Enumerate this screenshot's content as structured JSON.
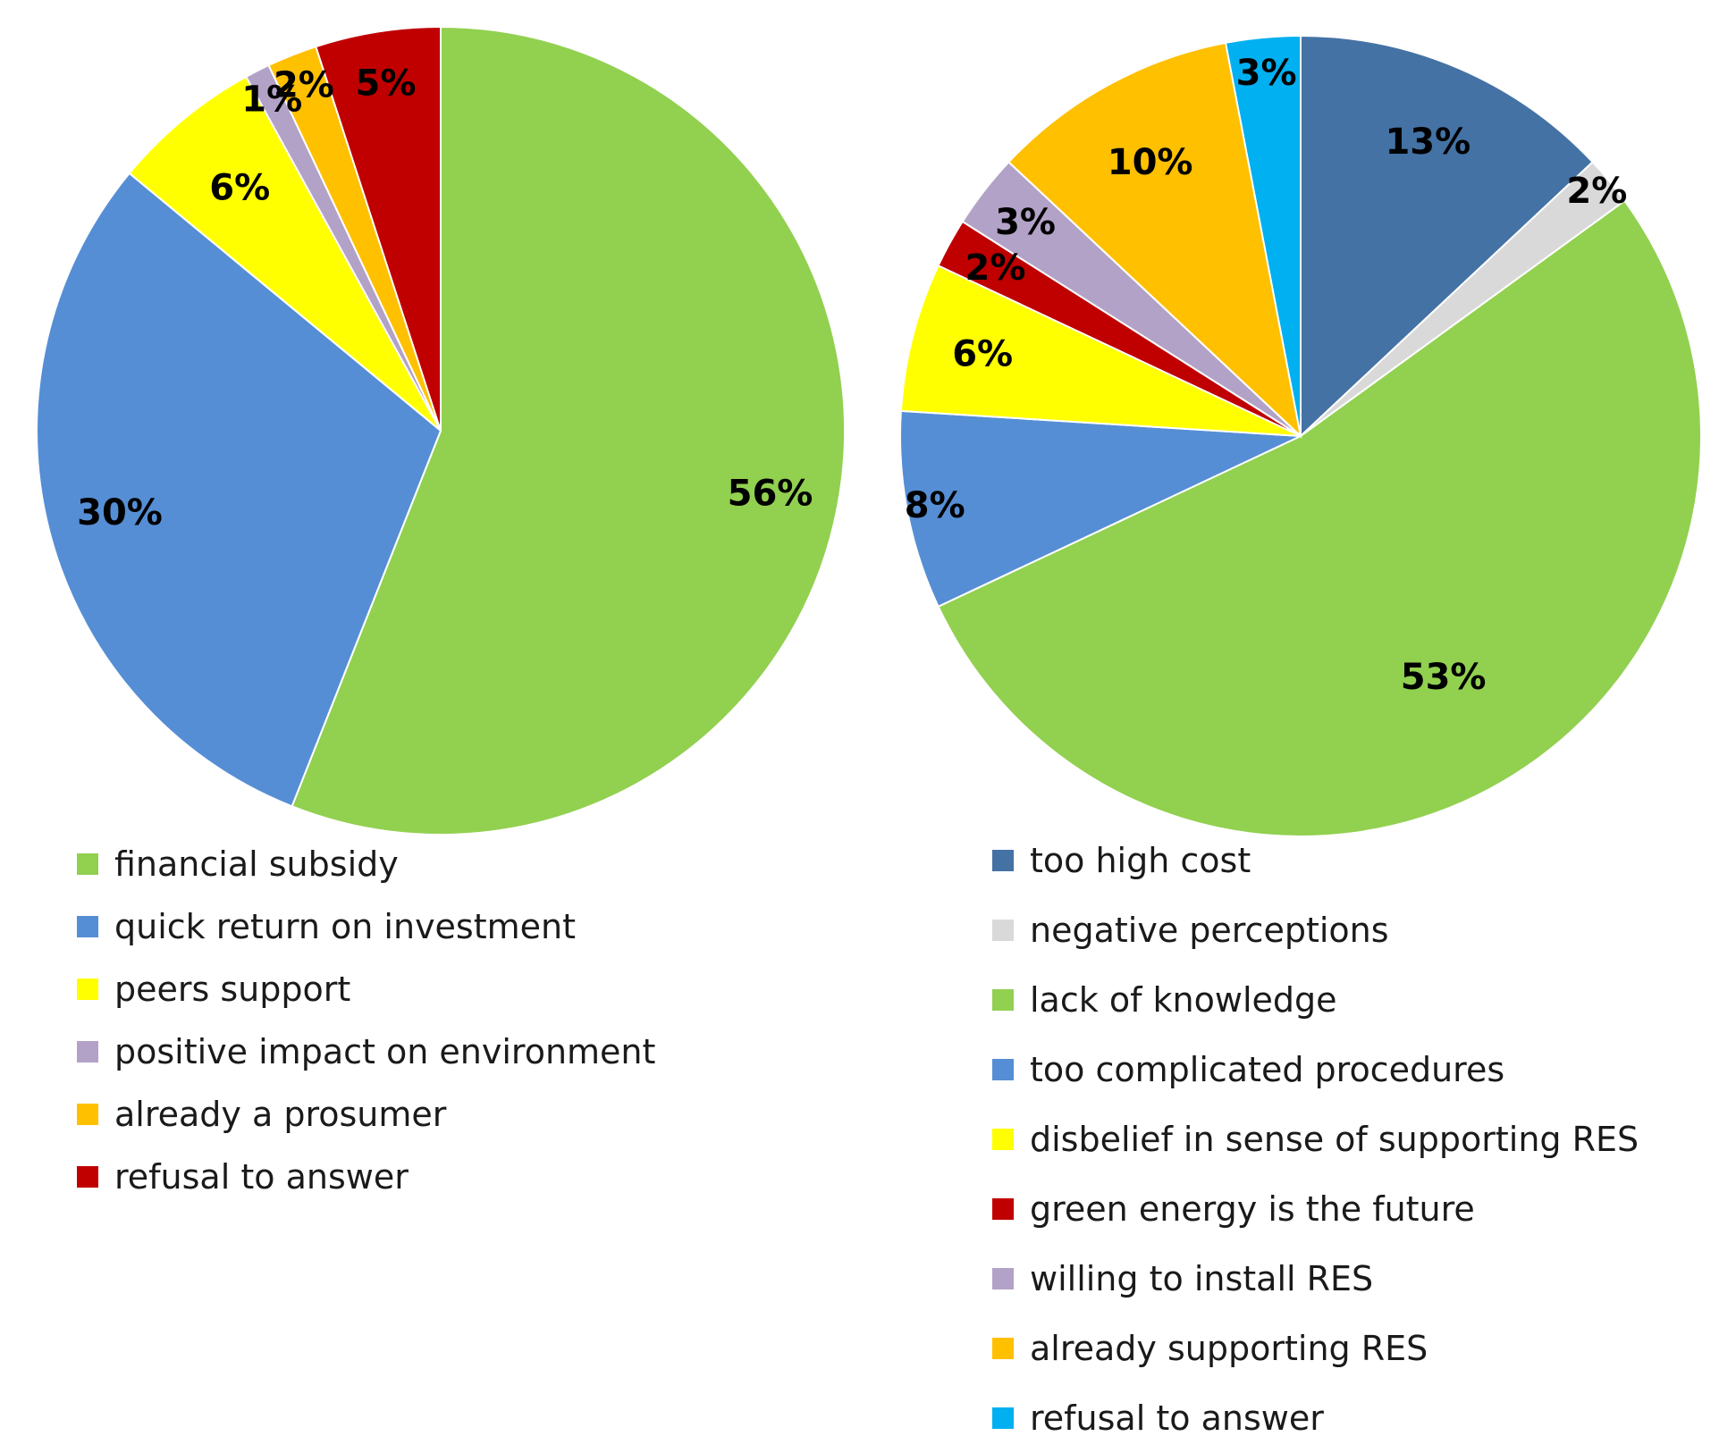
{
  "chart_data": [
    {
      "type": "pie",
      "title": "",
      "start": "top, clockwise",
      "series": [
        {
          "name": "financial subsidy",
          "value": 56,
          "label": "56%",
          "color": "#92D050"
        },
        {
          "name": "quick return on investment",
          "value": 30,
          "label": "30%",
          "color": "#558ED5"
        },
        {
          "name": "peers support",
          "value": 6,
          "label": "6%",
          "color": "#FFFF00"
        },
        {
          "name": "positive impact on environment",
          "value": 1,
          "label": "1%",
          "color": "#B3A2C7"
        },
        {
          "name": "already a prosumer",
          "value": 2,
          "label": "2%",
          "color": "#FFC000"
        },
        {
          "name": "refusal to answer",
          "value": 5,
          "label": "5%",
          "color": "#C00000"
        }
      ],
      "legend": [
        "financial subsidy",
        "quick return on investment",
        "peers support",
        "positive impact on environment",
        "already a prosumer",
        "refusal to answer"
      ],
      "legend_position": "bottom"
    },
    {
      "type": "pie",
      "title": "",
      "start": "top, clockwise",
      "series": [
        {
          "name": "too high cost",
          "value": 13,
          "label": "13%",
          "color": "#4472A4"
        },
        {
          "name": "negative perceptions",
          "value": 2,
          "label": "2%",
          "color": "#D9D9D9"
        },
        {
          "name": "lack of knowledge",
          "value": 53,
          "label": "53%",
          "color": "#92D050"
        },
        {
          "name": "too complicated procedures",
          "value": 8,
          "label": "8%",
          "color": "#558ED5"
        },
        {
          "name": "disbelief in sense of supporting RES",
          "value": 6,
          "label": "6%",
          "color": "#FFFF00"
        },
        {
          "name": "green energy is the future",
          "value": 2,
          "label": "2%",
          "color": "#C00000"
        },
        {
          "name": "willing to install RES",
          "value": 3,
          "label": "3%",
          "color": "#B3A2C7"
        },
        {
          "name": "already supporting RES",
          "value": 10,
          "label": "10%",
          "color": "#FFC000"
        },
        {
          "name": "refusal to answer",
          "value": 3,
          "label": "3%",
          "color": "#00B0F0"
        }
      ],
      "legend": [
        "too high cost",
        "negative perceptions",
        "lack of knowledge",
        "too complicated procedures",
        "disbelief in sense of supporting RES",
        "green energy is the future",
        "willing to install RES",
        "already supporting RES",
        "refusal to answer"
      ],
      "legend_position": "bottom"
    }
  ]
}
